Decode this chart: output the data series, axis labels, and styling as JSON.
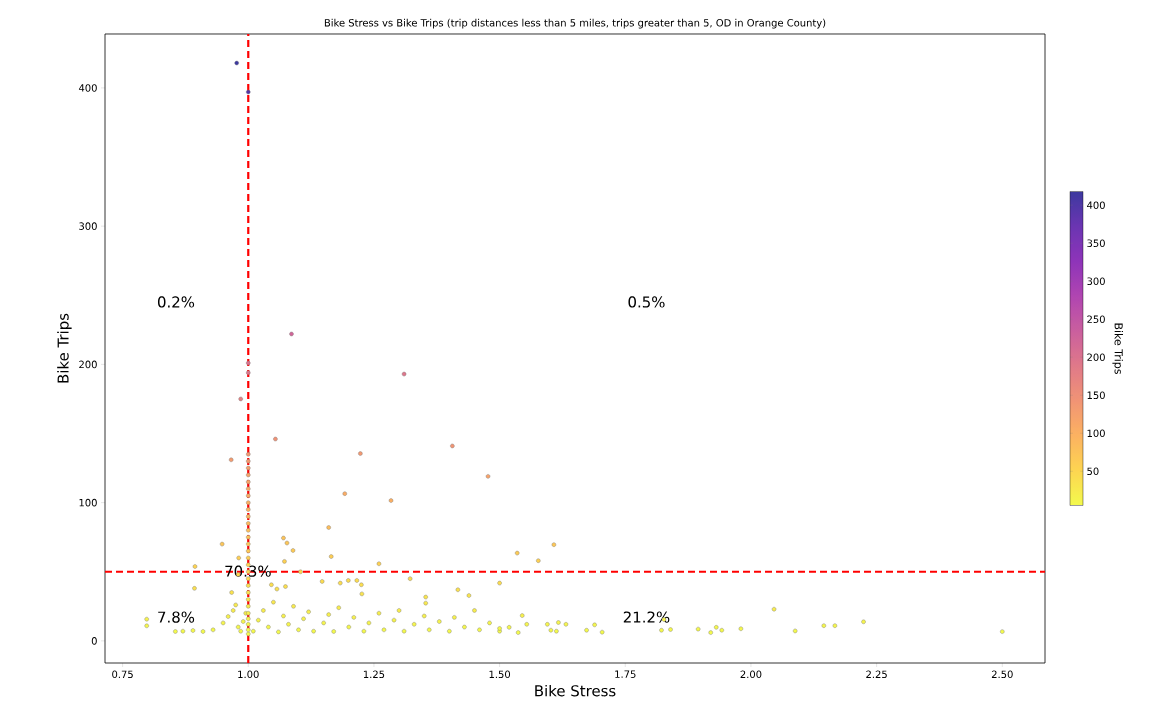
{
  "chart_data": {
    "type": "scatter",
    "title": "Bike Stress vs Bike Trips (trip distances less than 5 miles, trips greater than 5, OD in Orange County)",
    "xlabel": "Bike Stress",
    "ylabel": "Bike Trips",
    "clabel": "Bike Trips",
    "x": [
      0.977,
      1.0,
      1.086,
      1.0,
      1.0,
      0.985,
      1.31,
      1.054,
      0.966,
      1.223,
      1.406,
      1.477,
      1.192,
      1.284,
      1.16,
      1.07,
      1.077,
      1.089,
      0.948,
      1.165,
      1.072,
      0.894,
      1.26,
      1.535,
      1.577,
      1.608,
      1.104,
      1.322,
      1.147,
      1.183,
      1.199,
      1.216,
      1.225,
      1.226,
      1.046,
      1.057,
      1.074,
      1.5,
      1.417,
      1.439,
      1.353,
      1.353,
      0.893,
      0.967,
      0.798,
      0.798,
      0.981,
      0.98,
      1.545,
      1.554,
      1.519,
      1.537,
      1.595,
      1.617,
      1.632,
      1.602,
      1.613,
      1.673,
      1.689,
      1.704,
      1.827,
      1.822,
      1.84,
      1.895,
      1.92,
      1.931,
      1.942,
      1.98,
      2.046,
      2.088,
      2.145,
      2.167,
      2.224,
      2.5,
      0.855,
      0.87,
      0.89,
      0.91,
      0.93,
      0.95,
      0.96,
      0.97,
      0.975,
      0.98,
      0.985,
      0.99,
      0.995,
      1.0,
      1.0,
      1.0,
      1.0,
      1.0,
      1.0,
      1.0,
      1.0,
      1.0,
      1.0,
      1.0,
      1.0,
      1.0,
      1.0,
      1.0,
      1.0,
      1.0,
      1.0,
      1.0,
      1.0,
      1.0,
      1.0,
      1.0,
      1.0,
      1.0,
      1.0,
      1.0,
      1.0,
      1.01,
      1.02,
      1.03,
      1.04,
      1.05,
      1.06,
      1.07,
      1.08,
      1.09,
      1.1,
      1.11,
      1.12,
      1.13,
      1.15,
      1.16,
      1.17,
      1.18,
      1.2,
      1.21,
      1.23,
      1.24,
      1.26,
      1.27,
      1.29,
      1.3,
      1.31,
      1.33,
      1.35,
      1.36,
      1.38,
      1.4,
      1.41,
      1.43,
      1.45,
      1.46,
      1.48,
      1.5,
      1.5
    ],
    "values": [
      418,
      397,
      222,
      201,
      194,
      175,
      193,
      146,
      131,
      135.5,
      141,
      119,
      106.5,
      101.5,
      82,
      74.4,
      70.8,
      65.4,
      70,
      61,
      57.5,
      53.8,
      55.8,
      63.5,
      58,
      69.6,
      50,
      45,
      43,
      41.8,
      43.7,
      43.7,
      40.6,
      34,
      40.6,
      37.5,
      39.3,
      41.8,
      37,
      32.8,
      31.7,
      27.3,
      38,
      35,
      15.7,
      10.9,
      60,
      48,
      18.3,
      12,
      9.8,
      6,
      12,
      13.3,
      12,
      7.7,
      7,
      7.7,
      11.6,
      6.3,
      15.4,
      7.7,
      8.2,
      8.5,
      6,
      9.8,
      7.7,
      8.8,
      22.9,
      7.2,
      11,
      11,
      13.8,
      6.7,
      6.8,
      7,
      7.5,
      6.8,
      8,
      13,
      17.6,
      22,
      26,
      10,
      7,
      14,
      20,
      5,
      8,
      12,
      16,
      20,
      25,
      30,
      35,
      40,
      45,
      50,
      55,
      60,
      65,
      70,
      75,
      80,
      85,
      90,
      95,
      100,
      105,
      110,
      115,
      120,
      125,
      130,
      135,
      7,
      15,
      22,
      10,
      28,
      6.5,
      18,
      12,
      25,
      8,
      16,
      21,
      7,
      13,
      19,
      6.8,
      24,
      10,
      17,
      7,
      13,
      20,
      8,
      15,
      22,
      7,
      12,
      18,
      8,
      14,
      7,
      17,
      10,
      22,
      8,
      13,
      7,
      9
    ],
    "cvalues": [
      418,
      397,
      222,
      201,
      194,
      175,
      193,
      146,
      131,
      135.5,
      141,
      119,
      106.5,
      101.5,
      82,
      74.4,
      70.8,
      65.4,
      70,
      61,
      57.5,
      53.8,
      55.8,
      63.5,
      58,
      69.6,
      50,
      45,
      43,
      41.8,
      43.7,
      43.7,
      40.6,
      34,
      40.6,
      37.5,
      39.3,
      41.8,
      37,
      32.8,
      31.7,
      27.3,
      38,
      35,
      15.7,
      10.9,
      60,
      48,
      18.3,
      12,
      9.8,
      6,
      12,
      13.3,
      12,
      7.7,
      7,
      7.7,
      11.6,
      6.3,
      15.4,
      7.7,
      8.2,
      8.5,
      6,
      9.8,
      7.7,
      8.8,
      22.9,
      7.2,
      11,
      11,
      13.8,
      6.7,
      6.8,
      7,
      7.5,
      6.8,
      8,
      13,
      17.6,
      22,
      26,
      10,
      7,
      14,
      20,
      5,
      8,
      12,
      16,
      20,
      25,
      30,
      35,
      40,
      45,
      50,
      55,
      60,
      65,
      70,
      75,
      80,
      85,
      90,
      95,
      100,
      105,
      110,
      115,
      120,
      125,
      130,
      135,
      7,
      15,
      22,
      10,
      28,
      6.5,
      18,
      12,
      25,
      8,
      16,
      21,
      7,
      13,
      19,
      6.8,
      24,
      10,
      17,
      7,
      13,
      20,
      8,
      15,
      22,
      7,
      12,
      18,
      8,
      14,
      7,
      17,
      10,
      22,
      8,
      13,
      7,
      9
    ],
    "clim": [
      5,
      418
    ],
    "cticks": [
      50,
      100,
      150,
      200,
      250,
      300,
      350,
      400
    ],
    "xlim": [
      0.715,
      2.585
    ],
    "ylim": [
      -16,
      439
    ],
    "xticks": [
      {
        "value": 0.75,
        "label": "0.75"
      },
      {
        "value": 1.0,
        "label": "1.00"
      },
      {
        "value": 1.25,
        "label": "1.25"
      },
      {
        "value": 1.5,
        "label": "1.50"
      },
      {
        "value": 1.75,
        "label": "1.75"
      },
      {
        "value": 2.0,
        "label": "2.00"
      },
      {
        "value": 2.25,
        "label": "2.25"
      },
      {
        "value": 2.5,
        "label": "2.50"
      }
    ],
    "yticks": [
      0,
      100,
      200,
      300,
      400
    ],
    "marker": "circle",
    "ref_lines": [
      {
        "axis": "x",
        "value": 1.0,
        "color": "#ff0000",
        "line_style": "dashed"
      },
      {
        "axis": "y",
        "value": 50,
        "color": "#ff0000",
        "line_style": "dashed"
      }
    ],
    "annotations": [
      "0.2%",
      "0.5%",
      "70.3%",
      "7.8%",
      "21.2%"
    ]
  }
}
